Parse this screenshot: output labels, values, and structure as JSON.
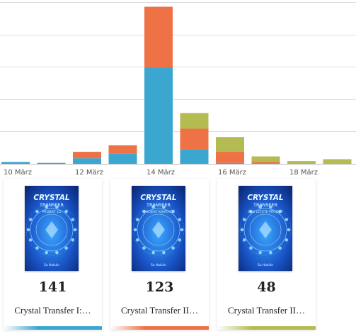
{
  "chart_data": {
    "type": "bar",
    "stacked": true,
    "categories": [
      "10 März",
      "11 März",
      "12 März",
      "13 März",
      "14 März",
      "15 März",
      "16 März",
      "17 März",
      "18 März",
      "19 März"
    ],
    "tick_labels": [
      "10 März",
      "12 März",
      "14 März",
      "16 März",
      "18 März"
    ],
    "series": [
      {
        "color": "#3ba6d0",
        "values": [
          2,
          1,
          6,
          11,
          104,
          16,
          1,
          0,
          0,
          0
        ]
      },
      {
        "color": "#ef7146",
        "values": [
          0,
          0,
          7,
          9,
          66,
          22,
          12,
          2,
          0,
          0
        ]
      },
      {
        "color": "#b4bb51",
        "values": [
          0,
          0,
          0,
          0,
          0,
          17,
          16,
          6,
          3,
          5
        ]
      }
    ],
    "ylim": [
      0,
      175
    ],
    "grid": true,
    "legend": "none"
  },
  "books": [
    {
      "count": "141",
      "title": "Crystal Transfer I:…",
      "accent": "#3ba6d0",
      "cover_title": "CRYSTAL",
      "cover_subtitle": "TRANSFER",
      "cover_tag": "PROJEKT 1D",
      "cover_author": "Su Halcón"
    },
    {
      "count": "123",
      "title": "Crystal Transfer II…",
      "accent": "#ef7146",
      "cover_title": "CRYSTAL",
      "cover_subtitle": "TRANSFER",
      "cover_tag": "PROJEKT KONTAKT",
      "cover_author": "Su Halcón"
    },
    {
      "count": "48",
      "title": "Crystal Transfer II…",
      "accent": "#b4bb51",
      "cover_title": "CRYSTAL",
      "cover_subtitle": "TRANSFER",
      "cover_tag": "DAS LETZTE PROJEKT",
      "cover_author": "Su Halcón"
    }
  ]
}
